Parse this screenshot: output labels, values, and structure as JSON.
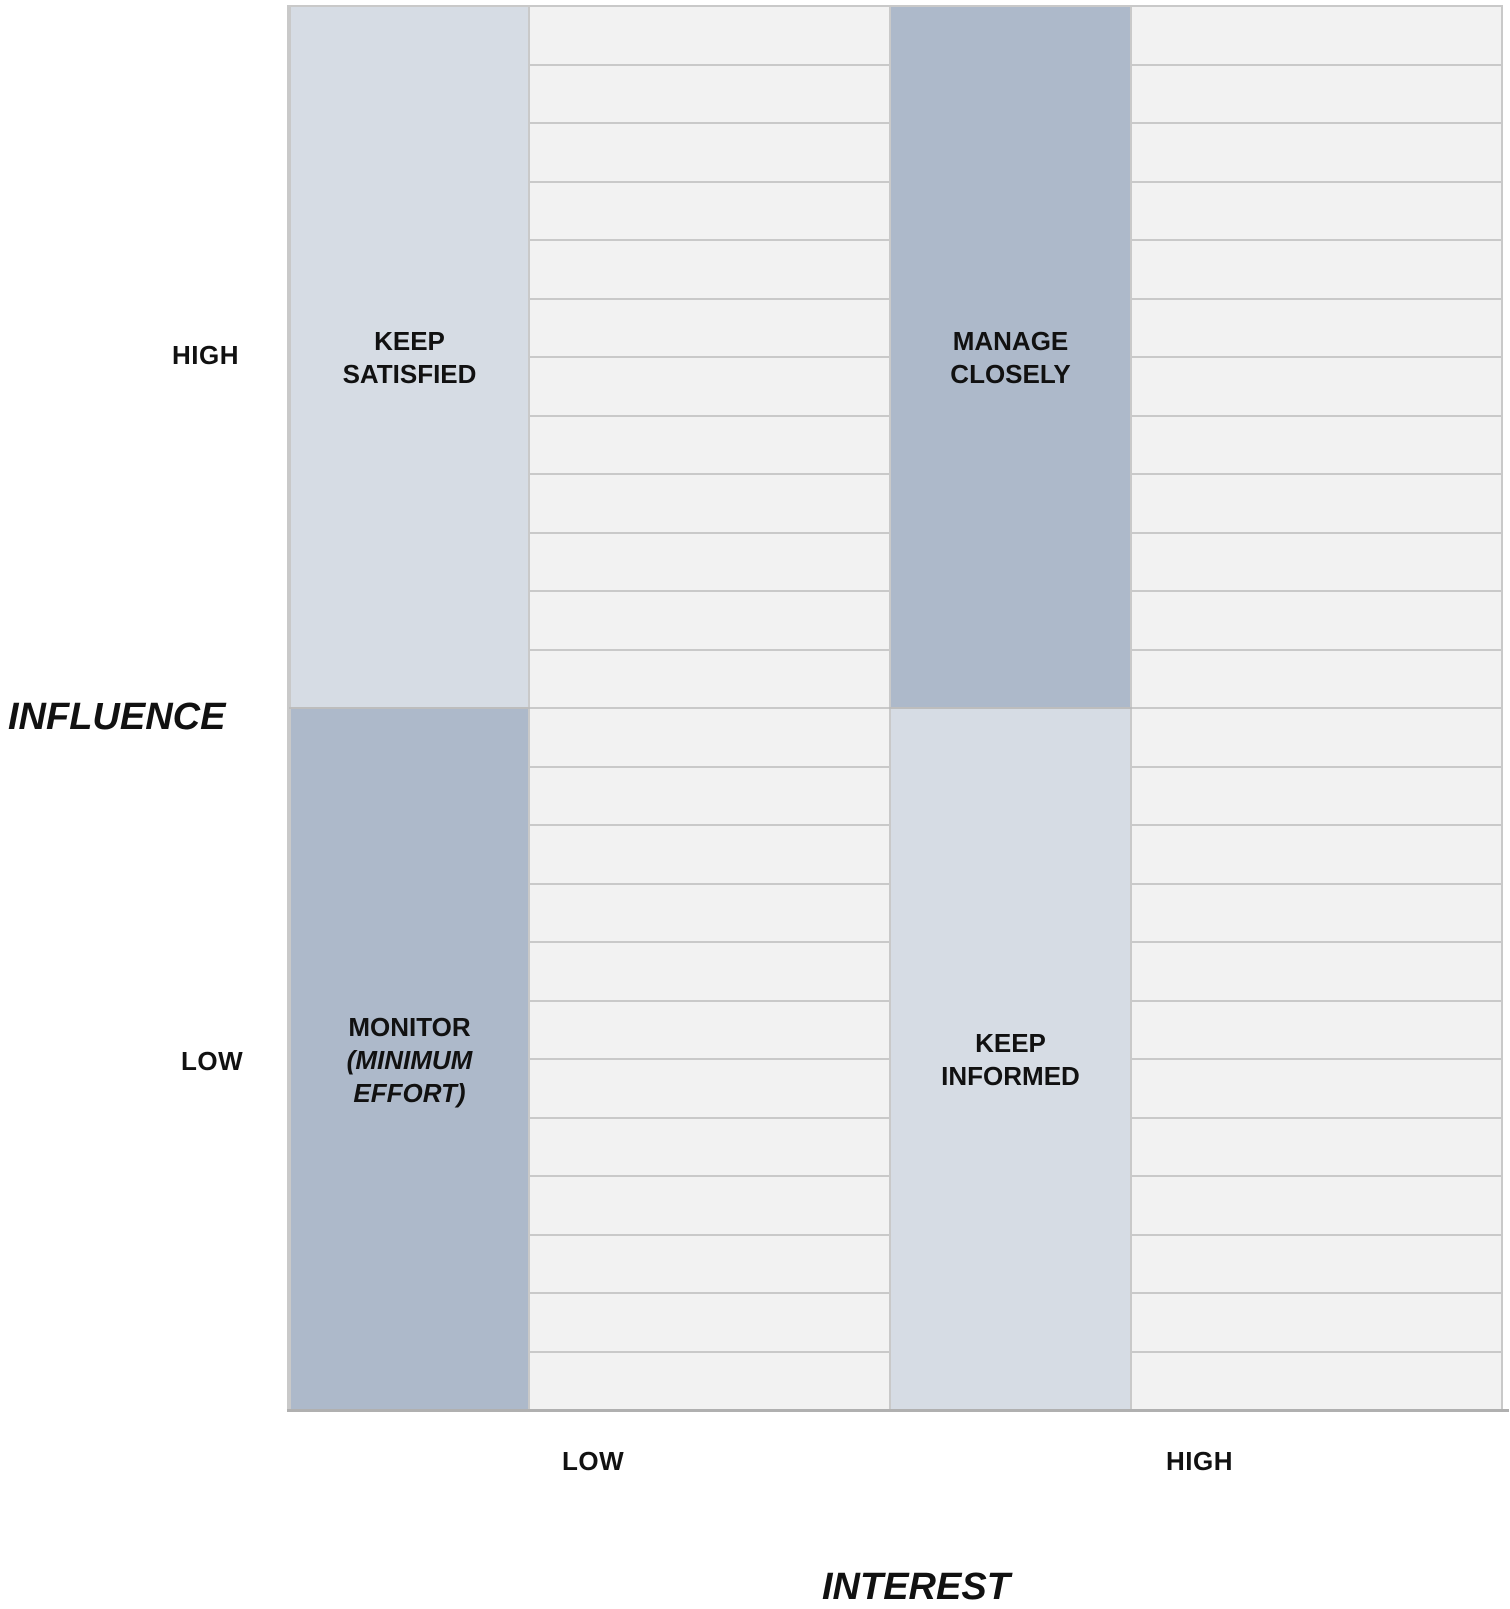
{
  "y_axis": {
    "title": "INFLUENCE",
    "high_label": "HIGH",
    "low_label": "LOW"
  },
  "x_axis": {
    "title": "INTEREST",
    "low_label": "LOW",
    "high_label": "HIGH"
  },
  "quadrants": {
    "top_left": {
      "lines": [
        "KEEP",
        "SATISFIED"
      ],
      "color": "#d6dce4"
    },
    "top_right": {
      "lines": [
        "MANAGE",
        "CLOSELY"
      ],
      "color": "#adb9ca"
    },
    "bottom_left": {
      "lines": [
        "MONITOR",
        "(MINIMUM",
        "EFFORT)"
      ],
      "italic_lines": [
        1,
        2
      ],
      "color": "#adb9ca"
    },
    "bottom_right": {
      "lines": [
        "KEEP",
        "INFORMED"
      ],
      "color": "#d6dce4"
    }
  },
  "colors": {
    "cell_background": "#f2f2f2",
    "grid_line": "#c9c9c9"
  }
}
